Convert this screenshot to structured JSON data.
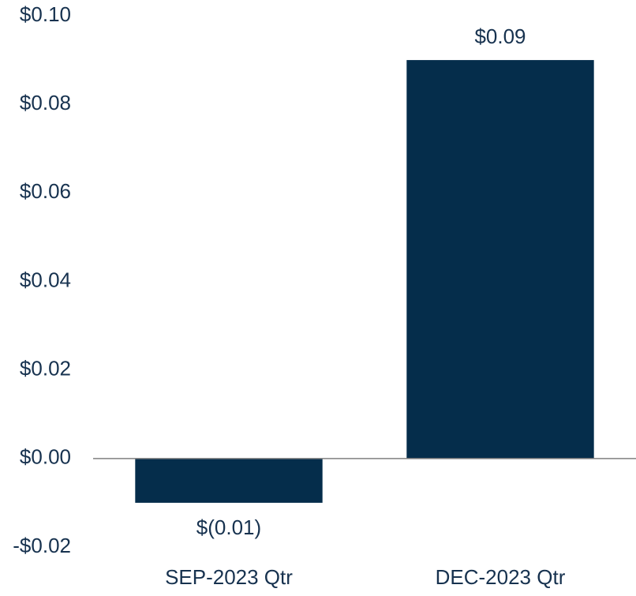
{
  "chart_data": {
    "type": "bar",
    "categories": [
      "SEP-2023 Qtr",
      "DEC-2023 Qtr"
    ],
    "values": [
      -0.01,
      0.09
    ],
    "value_labels": [
      "$(0.01)",
      "$0.09"
    ],
    "color": "#052d4b",
    "ylim": [
      -0.02,
      0.1
    ],
    "yticks": [
      {
        "value": -0.02,
        "label": "-$0.02"
      },
      {
        "value": 0,
        "label": "$0.00"
      },
      {
        "value": 0.02,
        "label": "$0.02"
      },
      {
        "value": 0.04,
        "label": "$0.04"
      },
      {
        "value": 0.06,
        "label": "$0.06"
      },
      {
        "value": 0.08,
        "label": "$0.08"
      },
      {
        "value": 0.1,
        "label": "$0.10"
      }
    ],
    "grid": false
  }
}
